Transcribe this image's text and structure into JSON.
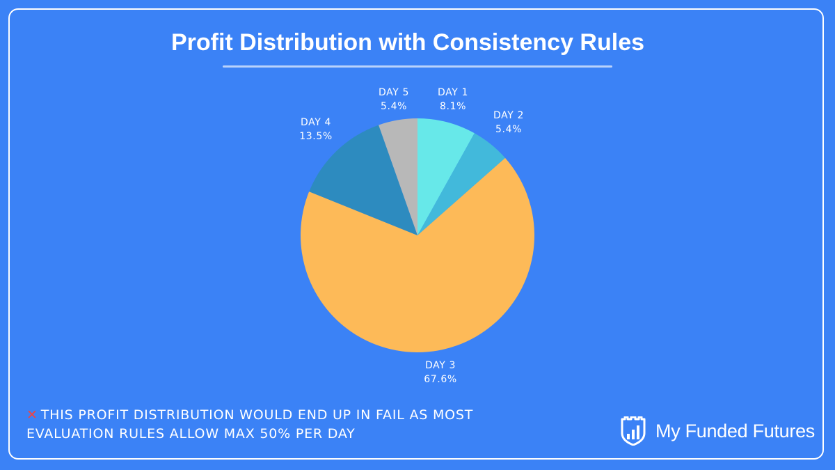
{
  "title": "Profit Distribution with Consistency Rules",
  "chart_data": {
    "type": "pie",
    "title": "Profit Distribution with Consistency Rules",
    "slices": [
      {
        "label": "DAY 1",
        "value": 8.1,
        "display": "8.1%",
        "color": "#67e8e9"
      },
      {
        "label": "DAY 2",
        "value": 5.4,
        "display": "5.4%",
        "color": "#42b9db"
      },
      {
        "label": "DAY 3",
        "value": 67.6,
        "display": "67.6%",
        "color": "#fdba58"
      },
      {
        "label": "DAY 4",
        "value": 13.5,
        "display": "13.5%",
        "color": "#2d8bbf"
      },
      {
        "label": "DAY 5",
        "value": 5.4,
        "display": "5.4%",
        "color": "#b8b8b8"
      }
    ]
  },
  "footnote": {
    "icon": "cross-mark-icon",
    "line1": "THIS PROFIT DISTRIBUTION WOULD END UP IN FAIL AS MOST",
    "line2": "EVALUATION RULES ALLOW MAX 50% PER DAY"
  },
  "brand": {
    "logo": "shield-chart-icon",
    "name": "My Funded Futures"
  }
}
